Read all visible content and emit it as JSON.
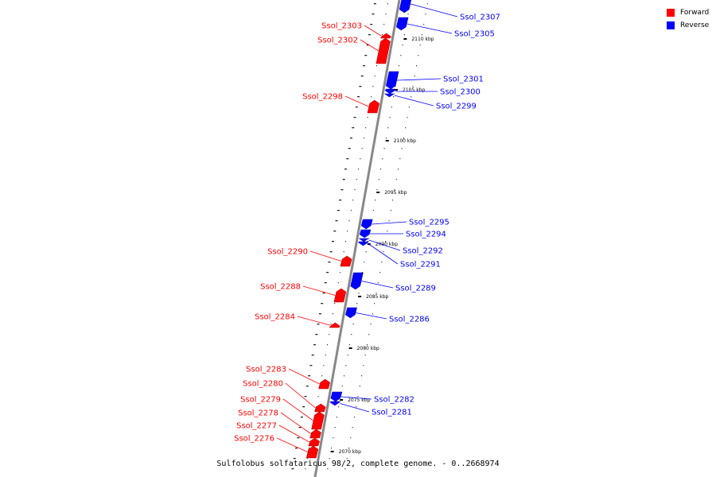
{
  "colors": {
    "forward": "#ff0000",
    "reverse": "#0000ff",
    "axis": "#888888"
  },
  "legend": [
    {
      "label": "Forward",
      "color": "#ff0000"
    },
    {
      "label": "Reverse",
      "color": "#0000ff"
    }
  ],
  "caption": "Sulfolobus solfataricus 98/2, complete genome. - 0..2668974",
  "ticks": [
    {
      "label": "2070 kbp"
    },
    {
      "label": "2075 kbp"
    },
    {
      "label": "2080 kbp"
    },
    {
      "label": "2085 kbp"
    },
    {
      "label": "2090 kbp"
    },
    {
      "label": "2095 kbp"
    },
    {
      "label": "2100 kbp"
    },
    {
      "label": "2105 kbp"
    },
    {
      "label": "2110 kbp"
    }
  ],
  "genes": [
    {
      "name": "Ssol_2307",
      "strand": "reverse"
    },
    {
      "name": "Ssol_2305",
      "strand": "reverse"
    },
    {
      "name": "Ssol_2303",
      "strand": "forward"
    },
    {
      "name": "Ssol_2302",
      "strand": "forward"
    },
    {
      "name": "Ssol_2301",
      "strand": "reverse"
    },
    {
      "name": "Ssol_2300",
      "strand": "reverse"
    },
    {
      "name": "Ssol_2299",
      "strand": "reverse"
    },
    {
      "name": "Ssol_2298",
      "strand": "forward"
    },
    {
      "name": "Ssol_2295",
      "strand": "reverse"
    },
    {
      "name": "Ssol_2294",
      "strand": "reverse"
    },
    {
      "name": "Ssol_2292",
      "strand": "reverse"
    },
    {
      "name": "Ssol_2291",
      "strand": "reverse"
    },
    {
      "name": "Ssol_2290",
      "strand": "forward"
    },
    {
      "name": "Ssol_2289",
      "strand": "reverse"
    },
    {
      "name": "Ssol_2288",
      "strand": "forward"
    },
    {
      "name": "Ssol_2286",
      "strand": "reverse"
    },
    {
      "name": "Ssol_2284",
      "strand": "forward"
    },
    {
      "name": "Ssol_2283",
      "strand": "forward"
    },
    {
      "name": "Ssol_2282",
      "strand": "reverse"
    },
    {
      "name": "Ssol_2281",
      "strand": "reverse"
    },
    {
      "name": "Ssol_2280",
      "strand": "forward"
    },
    {
      "name": "Ssol_2279",
      "strand": "forward"
    },
    {
      "name": "Ssol_2278",
      "strand": "forward"
    },
    {
      "name": "Ssol_2277",
      "strand": "forward"
    },
    {
      "name": "Ssol_2276",
      "strand": "forward"
    }
  ]
}
